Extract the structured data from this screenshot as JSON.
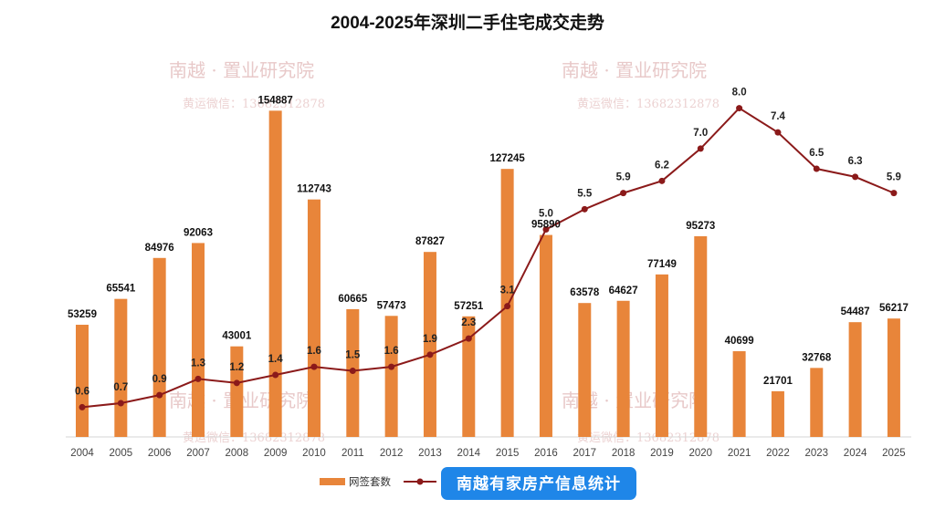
{
  "chart_data": {
    "type": "bar",
    "title": "2004-2025年深圳二手住宅成交走势",
    "categories": [
      "2004",
      "2005",
      "2006",
      "2007",
      "2008",
      "2009",
      "2010",
      "2011",
      "2012",
      "2013",
      "2014",
      "2015",
      "2016",
      "2017",
      "2018",
      "2019",
      "2020",
      "2021",
      "2022",
      "2023",
      "2024",
      "2025"
    ],
    "series": [
      {
        "name": "网签套数",
        "type": "bar",
        "color": "#e8853a",
        "values": [
          53259,
          65541,
          84976,
          92063,
          43001,
          154887,
          112743,
          60665,
          57473,
          87827,
          57251,
          127245,
          95890,
          63578,
          64627,
          77149,
          95273,
          40699,
          21701,
          32768,
          54487,
          56217
        ]
      },
      {
        "name": "",
        "type": "line",
        "color": "#8b1a1a",
        "values": [
          0.6,
          0.7,
          0.9,
          1.3,
          1.2,
          1.4,
          1.6,
          1.5,
          1.6,
          1.9,
          2.3,
          3.1,
          5.0,
          5.5,
          5.9,
          6.2,
          7.0,
          8.0,
          7.4,
          6.5,
          6.3,
          5.9
        ]
      }
    ],
    "bar_ylim": [
      0,
      165000
    ],
    "line_ylim": [
      0,
      8.6
    ],
    "xlabel": "",
    "ylabel": "",
    "legend_position": "bottom"
  },
  "watermark": {
    "name": "南越 · 置业研究院",
    "contact": "黄运微信：13682312878"
  },
  "source_badge": "南越有家房产信息统计",
  "colors": {
    "bar": "#e8853a",
    "line": "#8b1a1a",
    "badge": "#1f86e8"
  }
}
